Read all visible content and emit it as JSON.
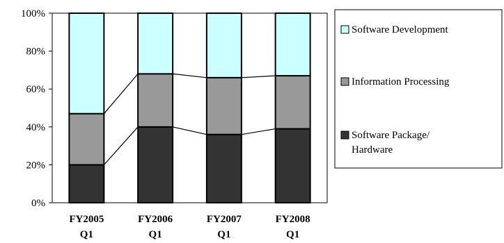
{
  "chart_data": {
    "type": "bar",
    "stacked": true,
    "normalized": true,
    "categories": [
      "FY2005\nQ1",
      "FY2006\nQ1",
      "FY2007\nQ1",
      "FY2008\nQ1"
    ],
    "series": [
      {
        "name": "Software Package/\nHardware",
        "values": [
          20,
          40,
          36,
          39
        ],
        "color": "#333333"
      },
      {
        "name": "Information Processing",
        "values": [
          27,
          28,
          30,
          28
        ],
        "color": "#999999"
      },
      {
        "name": "Software Development",
        "values": [
          53,
          32,
          34,
          33
        ],
        "color": "#ccffff"
      }
    ],
    "yticks": [
      "0%",
      "20%",
      "40%",
      "60%",
      "80%",
      "100%"
    ],
    "ylim": [
      0,
      100
    ],
    "series_lines": true,
    "grid": false,
    "legend": "right",
    "title": "",
    "xlabel": "",
    "ylabel": ""
  }
}
